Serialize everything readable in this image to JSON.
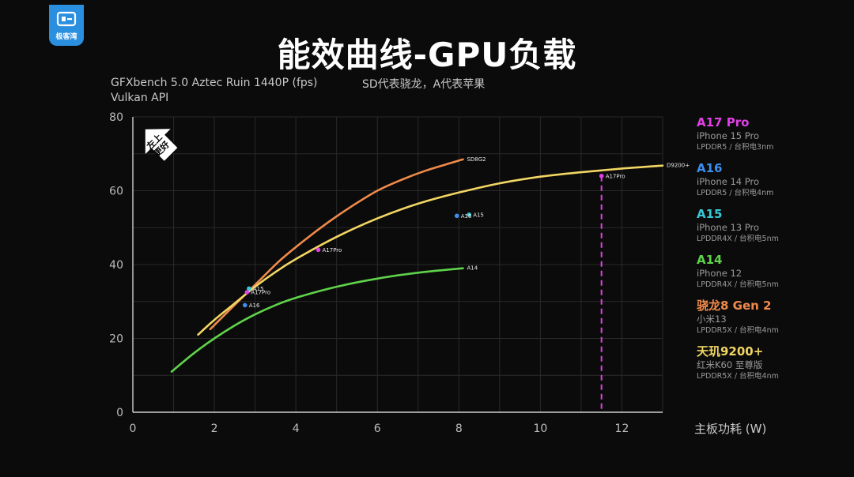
{
  "brand": {
    "logo_text": "极客湾",
    "accent": "#2b8fe0"
  },
  "header": {
    "title": "能效曲线-GPU负载",
    "subtitle_line1": "GFXbench 5.0 Aztec Ruin 1440P (fps)",
    "subtitle_line2": "Vulkan API",
    "note": "SD代表骁龙，A代表苹果"
  },
  "badge": {
    "line1": "左上",
    "line2": "更好"
  },
  "legend": [
    {
      "chip": "A17 Pro",
      "device": "iPhone 15 Pro",
      "memory": "LPDDR5 / 台积电3nm",
      "color": "#e040e6"
    },
    {
      "chip": "A16",
      "device": "iPhone 14 Pro",
      "memory": "LPDDR5 / 台积电4nm",
      "color": "#3b8ff0"
    },
    {
      "chip": "A15",
      "device": "iPhone 13 Pro",
      "memory": "LPDDR4X / 台积电5nm",
      "color": "#37c9d6"
    },
    {
      "chip": "A14",
      "device": "iPhone 12",
      "memory": "LPDDR4X / 台积电5nm",
      "color": "#5fd34a"
    },
    {
      "chip": "骁龙8 Gen 2",
      "device": "小米13",
      "memory": "LPDDR5X / 台积电4nm",
      "color": "#f08a4b"
    },
    {
      "chip": "天玑9200+",
      "device": "红米K60 至尊版",
      "memory": "LPDDR5X / 台积电4nm",
      "color": "#f2d664"
    }
  ],
  "chart_data": {
    "type": "line",
    "title": "能效曲线-GPU负载",
    "subtitle": "GFXbench 5.0 Aztec Ruin 1440P (fps) / Vulkan API",
    "xlabel": "主板功耗 (W)",
    "ylabel": "",
    "xlim": [
      0,
      13
    ],
    "ylim": [
      0,
      80
    ],
    "xticks": [
      0,
      2,
      4,
      6,
      8,
      10,
      12
    ],
    "yticks": [
      0,
      20,
      40,
      60,
      80
    ],
    "grid": true,
    "legend_position": "right",
    "series": [
      {
        "name": "SD8G2",
        "color": "#f08a4b",
        "x": [
          1.9,
          2.4,
          3.0,
          3.6,
          4.2,
          4.8,
          5.4,
          6.0,
          6.6,
          7.2,
          7.8,
          8.1
        ],
        "y": [
          22.5,
          28.0,
          34.5,
          41.0,
          46.5,
          51.5,
          56.0,
          60.0,
          63.0,
          65.5,
          67.5,
          68.5
        ]
      },
      {
        "name": "D9200+",
        "color": "#f2d664",
        "x": [
          1.6,
          2.0,
          2.5,
          3.0,
          3.5,
          4.0,
          5.0,
          6.0,
          7.0,
          8.0,
          9.0,
          10.0,
          11.0,
          12.0,
          13.0
        ],
        "y": [
          21.0,
          25.0,
          29.5,
          34.0,
          38.0,
          41.5,
          47.5,
          52.5,
          56.5,
          59.5,
          62.0,
          63.8,
          65.0,
          66.0,
          66.8
        ]
      },
      {
        "name": "A14",
        "color": "#5fd34a",
        "x": [
          0.95,
          1.5,
          2.0,
          2.5,
          3.0,
          3.5,
          4.0,
          5.0,
          6.0,
          7.0,
          8.1
        ],
        "y": [
          11.0,
          16.0,
          20.0,
          23.5,
          26.5,
          29.0,
          31.0,
          34.0,
          36.2,
          37.8,
          39.0
        ]
      }
    ],
    "points": [
      {
        "label": "A17Pro",
        "x": 11.5,
        "y": 64.0,
        "color": "#e040e6"
      },
      {
        "label": "A17Pro",
        "x": 4.55,
        "y": 44.0,
        "color": "#e040e6"
      },
      {
        "label": "A17Pro",
        "x": 2.8,
        "y": 32.5,
        "color": "#e040e6"
      },
      {
        "label": "A15",
        "x": 2.85,
        "y": 33.5,
        "color": "#37c9d6"
      },
      {
        "label": "A15",
        "x": 8.25,
        "y": 53.5,
        "color": "#37c9d6"
      },
      {
        "label": "A16",
        "x": 2.75,
        "y": 29.0,
        "color": "#3b8ff0"
      },
      {
        "label": "A16",
        "x": 7.95,
        "y": 53.2,
        "color": "#3b8ff0"
      }
    ],
    "annotations": [
      {
        "type": "vline",
        "x": 11.5,
        "y_top": 64.0,
        "color": "#e040e6",
        "style": "dashed"
      }
    ]
  }
}
